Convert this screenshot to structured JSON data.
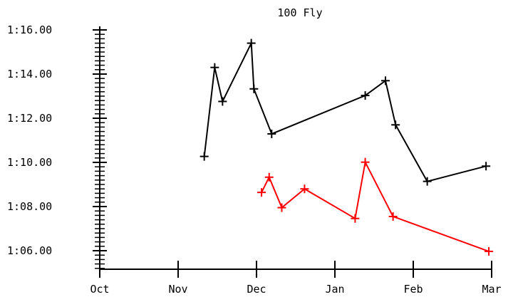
{
  "chart_data": {
    "type": "line",
    "title": "100 Fly",
    "xlabel": "",
    "ylabel": "",
    "x_tick_labels": [
      "Oct",
      "Nov",
      "Dec",
      "Jan",
      "Feb",
      "Mar"
    ],
    "y_tick_labels": [
      "1:06.00",
      "1:08.00",
      "1:10.00",
      "1:12.00",
      "1:14.00",
      "1:16.00"
    ],
    "y_ticks_seconds": [
      66,
      68,
      70,
      72,
      74,
      76
    ],
    "xlim": [
      "Oct 1",
      "Mar 1"
    ],
    "ylim_seconds": [
      65.0,
      76.1
    ],
    "grid": false,
    "series": [
      {
        "color": "#000000",
        "points": [
          {
            "x": "Nov 11",
            "y": 70.27
          },
          {
            "x": "Nov 15",
            "y": 74.3
          },
          {
            "x": "Nov 18",
            "y": 72.76
          },
          {
            "x": "Nov 29",
            "y": 75.4
          },
          {
            "x": "Nov 30",
            "y": 73.33
          },
          {
            "x": "Dec 7",
            "y": 71.29
          },
          {
            "x": "Jan 13",
            "y": 73.03
          },
          {
            "x": "Jan 21",
            "y": 73.7
          },
          {
            "x": "Jan 25",
            "y": 71.7
          },
          {
            "x": "Feb 6",
            "y": 69.14
          },
          {
            "x": "Feb 27",
            "y": 69.83
          }
        ]
      },
      {
        "color": "#ff0000",
        "points": [
          {
            "x": "Dec 3",
            "y": 68.64
          },
          {
            "x": "Dec 6",
            "y": 69.33
          },
          {
            "x": "Dec 11",
            "y": 67.95
          },
          {
            "x": "Dec 20",
            "y": 68.8
          },
          {
            "x": "Jan 9",
            "y": 67.46
          },
          {
            "x": "Jan 13",
            "y": 70.01
          },
          {
            "x": "Jan 24",
            "y": 67.55
          },
          {
            "x": "Feb 28",
            "y": 65.97
          }
        ]
      }
    ]
  }
}
